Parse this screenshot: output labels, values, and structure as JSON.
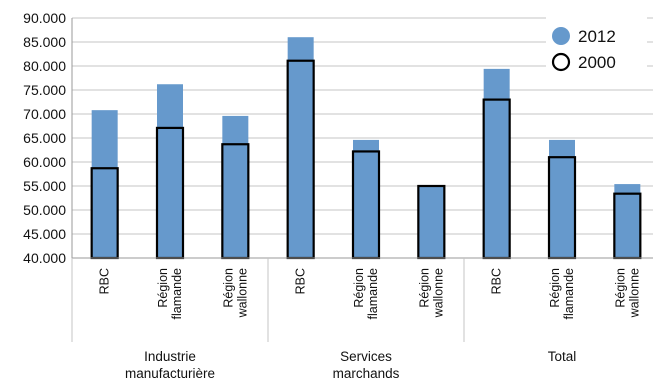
{
  "chart_data": {
    "type": "bar",
    "ylim": [
      40000,
      90000
    ],
    "y_ticks": [
      "40.000",
      "45.000",
      "50.000",
      "55.000",
      "60.000",
      "65.000",
      "70.000",
      "75.000",
      "80.000",
      "85.000",
      "90.000"
    ],
    "groups": [
      {
        "label_lines": [
          "Industrie",
          "manufacturière"
        ],
        "categories": [
          0,
          1,
          2
        ]
      },
      {
        "label_lines": [
          "Services",
          "marchands"
        ],
        "categories": [
          3,
          4,
          5
        ]
      },
      {
        "label_lines": [
          "Total"
        ],
        "categories": [
          6,
          7,
          8
        ]
      }
    ],
    "categories": [
      {
        "lines": [
          "RBC"
        ]
      },
      {
        "lines": [
          "Région",
          "flamande"
        ]
      },
      {
        "lines": [
          "Région",
          "wallonne"
        ]
      },
      {
        "lines": [
          "RBC"
        ]
      },
      {
        "lines": [
          "Région",
          "flamande"
        ]
      },
      {
        "lines": [
          "Région",
          "wallonne"
        ]
      },
      {
        "lines": [
          "RBC"
        ]
      },
      {
        "lines": [
          "Région",
          "flamande"
        ]
      },
      {
        "lines": [
          "Région",
          "wallonne"
        ]
      }
    ],
    "series": [
      {
        "name": "2012",
        "style": "filled",
        "color": "#6699cc",
        "values": [
          70800,
          76200,
          69600,
          86000,
          64600,
          55200,
          79400,
          64600,
          55400
        ]
      },
      {
        "name": "2000",
        "style": "outline",
        "color": "#000000",
        "values": [
          58700,
          67100,
          63700,
          81100,
          62200,
          55000,
          73000,
          61000,
          53400
        ]
      }
    ],
    "grid": "horizontal",
    "legend_position": "top-right"
  }
}
